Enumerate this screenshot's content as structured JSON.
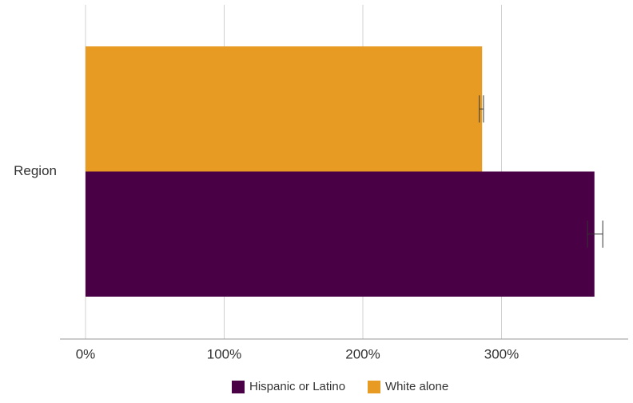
{
  "chart_data": {
    "type": "bar",
    "orientation": "horizontal",
    "categories": [
      "Region"
    ],
    "series": [
      {
        "name": "Hispanic or Latino",
        "color": "#4a0045",
        "values": [
          367
        ],
        "error": [
          [
            362,
            373
          ]
        ]
      },
      {
        "name": "White alone",
        "color": "#e89b22",
        "values": [
          286
        ],
        "error": [
          [
            284,
            287
          ]
        ]
      }
    ],
    "xlim": [
      0,
      400
    ],
    "xticks": [
      {
        "value": 0,
        "label": "0%"
      },
      {
        "value": 100,
        "label": "100%"
      },
      {
        "value": 200,
        "label": "200%"
      },
      {
        "value": 300,
        "label": "300%"
      }
    ],
    "grid": true,
    "legend": "bottom-center",
    "title": "",
    "xlabel": "",
    "ylabel": ""
  }
}
